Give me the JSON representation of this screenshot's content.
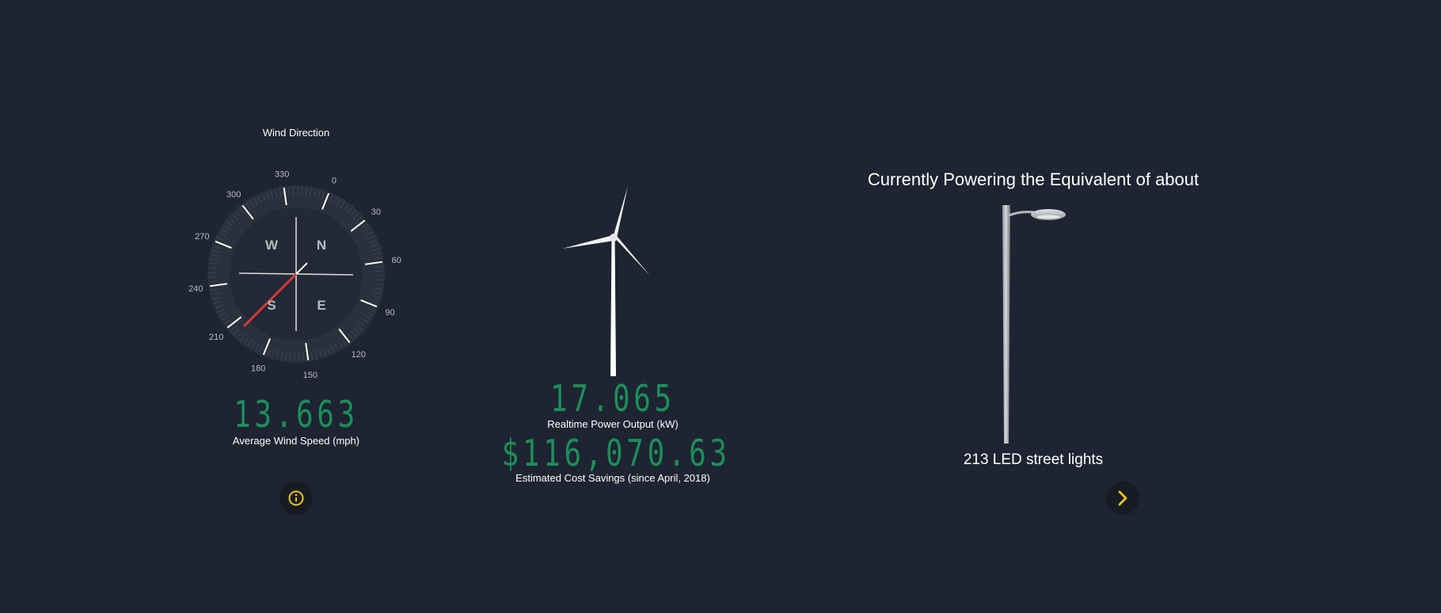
{
  "wind_direction": {
    "title": "Wind Direction",
    "cardinals": [
      "N",
      "E",
      "S",
      "W"
    ],
    "degree_labels": [
      "0",
      "30",
      "60",
      "90",
      "120",
      "150",
      "180",
      "210",
      "240",
      "270",
      "300",
      "330"
    ],
    "needle_color": "#d23a3a"
  },
  "wind_speed": {
    "value": "13.663",
    "label": "Average Wind Speed (mph)"
  },
  "power": {
    "value": "17.065",
    "label": "Realtime Power Output (kW)"
  },
  "savings": {
    "value": "$116,070.63",
    "label": "Estimated Cost Savings (since April, 2018)"
  },
  "equivalent": {
    "title": "Currently Powering the Equivalent of about",
    "count_text": "213 LED street lights"
  },
  "buttons": {
    "info_icon": "info-circle-icon",
    "next_icon": "chevron-right-icon",
    "accent_color": "#e8c620"
  },
  "colors": {
    "background": "#1e2431",
    "lcd_green": "#1a8f5b"
  }
}
